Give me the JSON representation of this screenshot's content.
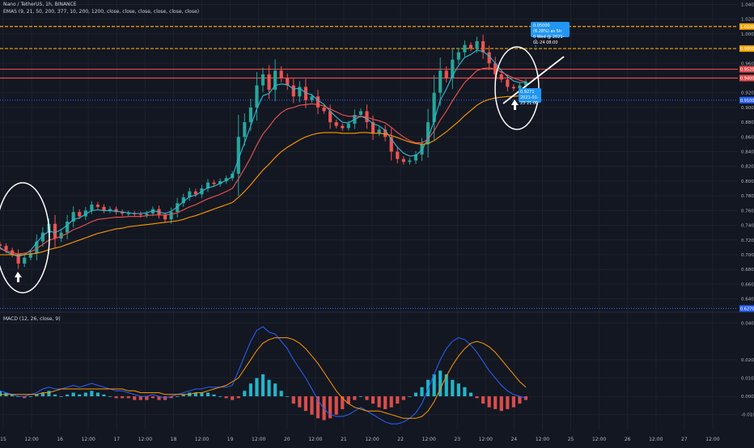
{
  "header": {
    "symbol_line": "Nano / TetherUS, 1h, BINANCE",
    "ema_line": "EMAS (9, 21, 50, 200, 377, 10, 200, 1200, close, close, close, close, close, close)",
    "macd_line": "MACD (12, 26, close, 9)"
  },
  "annotations": {
    "target_label_line1": "0.05000 (6.28%) as 5h",
    "target_label_line2": "0 Wed @ 2021-01-24 08:00",
    "current_label_line1": "0.9271",
    "current_label_line2": "2021-01-23 21:00"
  },
  "colors": {
    "background": "#131722",
    "grid": "#1e222d",
    "candle_up": "#26a69a",
    "candle_down": "#ef5350",
    "ema_fast": "#2ebcd6",
    "ema_mid": "#f05350",
    "ema_slow": "#ff9800",
    "level_orange": "#f7a600",
    "level_red": "#e04a4a",
    "level_blue": "#2962ff",
    "macd_line": "#2962ff",
    "signal_line": "#ff9800",
    "hist_up": "#26c6da",
    "hist_down": "#ef5350"
  },
  "chart_data": [
    {
      "type": "candlestick",
      "title": "Nano / TetherUS, 1h, BINANCE",
      "x_ticks": [
        "15",
        "12:00",
        "16",
        "12:00",
        "17",
        "12:00",
        "18",
        "12:00",
        "19",
        "12:00",
        "20",
        "12:00",
        "21",
        "12:00",
        "22",
        "12:00",
        "23",
        "12:00",
        "24",
        "12:00",
        "25",
        "12:00",
        "26",
        "12:00",
        "27",
        "12:00"
      ],
      "y_ticks": [
        "1.0400",
        "1.0200",
        "1.0000",
        "0.9800",
        "0.9600",
        "0.9400",
        "0.9200",
        "0.9000",
        "0.8800",
        "0.8600",
        "0.8400",
        "0.8200",
        "0.8000",
        "0.7800",
        "0.7600",
        "0.7400",
        "0.7200",
        "0.7000",
        "0.6800",
        "0.6600",
        "0.6400"
      ],
      "ylim": [
        0.622,
        1.046
      ],
      "grid": true,
      "close_series": [
        0.712,
        0.706,
        0.7,
        0.688,
        0.696,
        0.702,
        0.718,
        0.73,
        0.742,
        0.722,
        0.73,
        0.745,
        0.758,
        0.752,
        0.76,
        0.768,
        0.765,
        0.76,
        0.762,
        0.758,
        0.756,
        0.756,
        0.755,
        0.754,
        0.756,
        0.762,
        0.754,
        0.748,
        0.758,
        0.77,
        0.778,
        0.786,
        0.782,
        0.79,
        0.798,
        0.796,
        0.8,
        0.804,
        0.81,
        0.86,
        0.88,
        0.9,
        0.93,
        0.945,
        0.924,
        0.95,
        0.94,
        0.93,
        0.915,
        0.928,
        0.91,
        0.915,
        0.9,
        0.895,
        0.88,
        0.875,
        0.872,
        0.878,
        0.89,
        0.895,
        0.88,
        0.865,
        0.87,
        0.86,
        0.84,
        0.83,
        0.826,
        0.828,
        0.836,
        0.85,
        0.88,
        0.92,
        0.95,
        0.94,
        0.965,
        0.975,
        0.985,
        0.98,
        0.99,
        0.975,
        0.96,
        0.945,
        0.938,
        0.928,
        0.926,
        0.93,
        0.935
      ],
      "series": [
        {
          "name": "EMA 9",
          "values": [
            0.71,
            0.704,
            0.7,
            0.698,
            0.7,
            0.706,
            0.716,
            0.726,
            0.732,
            0.73,
            0.734,
            0.74,
            0.748,
            0.75,
            0.755,
            0.76,
            0.761,
            0.76,
            0.76,
            0.759,
            0.758,
            0.757,
            0.756,
            0.756,
            0.757,
            0.76,
            0.758,
            0.756,
            0.759,
            0.765,
            0.772,
            0.779,
            0.781,
            0.786,
            0.791,
            0.793,
            0.797,
            0.801,
            0.806,
            0.83,
            0.852,
            0.875,
            0.898,
            0.916,
            0.919,
            0.93,
            0.932,
            0.931,
            0.925,
            0.926,
            0.92,
            0.917,
            0.91,
            0.904,
            0.895,
            0.887,
            0.88,
            0.879,
            0.884,
            0.888,
            0.885,
            0.878,
            0.875,
            0.869,
            0.857,
            0.846,
            0.838,
            0.834,
            0.835,
            0.842,
            0.858,
            0.882,
            0.91,
            0.925,
            0.943,
            0.957,
            0.968,
            0.972,
            0.978,
            0.976,
            0.97,
            0.96,
            0.95,
            0.942,
            0.936,
            0.934,
            0.934
          ]
        },
        {
          "name": "EMA 21",
          "values": [
            0.708,
            0.705,
            0.703,
            0.701,
            0.702,
            0.704,
            0.708,
            0.714,
            0.72,
            0.722,
            0.725,
            0.729,
            0.734,
            0.737,
            0.741,
            0.745,
            0.748,
            0.749,
            0.75,
            0.751,
            0.751,
            0.752,
            0.752,
            0.752,
            0.753,
            0.754,
            0.754,
            0.754,
            0.755,
            0.757,
            0.761,
            0.765,
            0.768,
            0.772,
            0.776,
            0.779,
            0.782,
            0.786,
            0.79,
            0.803,
            0.817,
            0.832,
            0.849,
            0.864,
            0.874,
            0.885,
            0.893,
            0.898,
            0.9,
            0.903,
            0.904,
            0.905,
            0.904,
            0.902,
            0.898,
            0.894,
            0.89,
            0.888,
            0.888,
            0.888,
            0.887,
            0.884,
            0.882,
            0.879,
            0.873,
            0.866,
            0.86,
            0.855,
            0.852,
            0.852,
            0.857,
            0.868,
            0.883,
            0.895,
            0.909,
            0.922,
            0.934,
            0.942,
            0.95,
            0.953,
            0.954,
            0.952,
            0.948,
            0.944,
            0.94,
            0.937,
            0.935
          ]
        },
        {
          "name": "EMA 50",
          "values": [
            0.7,
            0.7,
            0.7,
            0.7,
            0.7,
            0.701,
            0.702,
            0.704,
            0.707,
            0.709,
            0.711,
            0.714,
            0.717,
            0.72,
            0.723,
            0.726,
            0.729,
            0.731,
            0.733,
            0.735,
            0.736,
            0.738,
            0.739,
            0.74,
            0.741,
            0.742,
            0.743,
            0.744,
            0.745,
            0.746,
            0.748,
            0.751,
            0.753,
            0.756,
            0.759,
            0.762,
            0.765,
            0.768,
            0.771,
            0.778,
            0.786,
            0.795,
            0.805,
            0.815,
            0.823,
            0.832,
            0.84,
            0.846,
            0.851,
            0.856,
            0.86,
            0.863,
            0.865,
            0.866,
            0.866,
            0.866,
            0.865,
            0.865,
            0.865,
            0.866,
            0.866,
            0.865,
            0.865,
            0.864,
            0.862,
            0.859,
            0.856,
            0.853,
            0.851,
            0.85,
            0.851,
            0.855,
            0.861,
            0.867,
            0.874,
            0.881,
            0.889,
            0.896,
            0.903,
            0.908,
            0.911,
            0.913,
            0.914,
            0.915,
            0.915,
            0.916,
            0.917
          ]
        }
      ],
      "horizontal_levels": [
        {
          "price": 1.01,
          "label": "1.0100",
          "style": "dashed",
          "color": "#f7a600"
        },
        {
          "price": 0.98,
          "label": "0.9800",
          "style": "dashed",
          "color": "#f7a600"
        },
        {
          "price": 0.952,
          "label": "0.9520",
          "style": "solid",
          "color": "#e04a4a"
        },
        {
          "price": 0.94,
          "label": "0.9400",
          "style": "solid",
          "color": "#e04a4a"
        },
        {
          "price": 0.91,
          "label": "0.9100",
          "style": "dotted",
          "color": "#2962ff"
        },
        {
          "price": 0.627,
          "label": "0.6270",
          "style": "dotted",
          "color": "#2962ff"
        }
      ]
    },
    {
      "type": "bar",
      "title": "MACD (12, 26, close, 9)",
      "y_ticks": [
        "0.0400",
        "0.0200",
        "0.0100",
        "0.0000",
        "-0.0100"
      ],
      "ylim": [
        -0.0185,
        0.0455
      ],
      "histogram": [
        0.003,
        0.002,
        0.001,
        0.0,
        -0.001,
        0.0,
        0.001,
        0.002,
        0.003,
        0.001,
        0.0,
        0.001,
        0.002,
        0.001,
        0.002,
        0.003,
        0.002,
        0.001,
        0.0,
        -0.001,
        -0.001,
        -0.001,
        -0.002,
        -0.002,
        -0.002,
        -0.001,
        -0.002,
        -0.002,
        -0.001,
        0.0,
        0.001,
        0.002,
        0.002,
        0.002,
        0.002,
        0.001,
        0.0,
        -0.001,
        -0.002,
        -0.001,
        0.003,
        0.007,
        0.01,
        0.012,
        0.009,
        0.007,
        0.003,
        0.0,
        -0.004,
        -0.006,
        -0.008,
        -0.01,
        -0.012,
        -0.013,
        -0.012,
        -0.01,
        -0.007,
        -0.004,
        -0.002,
        0.0,
        -0.002,
        -0.004,
        -0.006,
        -0.007,
        -0.006,
        -0.004,
        -0.002,
        0.0,
        0.002,
        0.005,
        0.009,
        0.012,
        0.014,
        0.012,
        0.009,
        0.007,
        0.005,
        0.002,
        -0.001,
        -0.004,
        -0.006,
        -0.007,
        -0.008,
        -0.007,
        -0.006,
        -0.004,
        -0.002
      ],
      "series": [
        {
          "name": "MACD",
          "values": [
            0.003,
            0.002,
            0.001,
            0.0,
            0.0,
            0.001,
            0.002,
            0.004,
            0.005,
            0.004,
            0.004,
            0.005,
            0.006,
            0.005,
            0.006,
            0.007,
            0.006,
            0.005,
            0.004,
            0.003,
            0.003,
            0.002,
            0.001,
            0.0,
            0.0,
            0.001,
            0.0,
            -0.001,
            0.0,
            0.001,
            0.002,
            0.003,
            0.004,
            0.004,
            0.005,
            0.005,
            0.005,
            0.005,
            0.006,
            0.014,
            0.022,
            0.03,
            0.036,
            0.038,
            0.035,
            0.034,
            0.03,
            0.026,
            0.02,
            0.015,
            0.01,
            0.004,
            -0.002,
            -0.007,
            -0.01,
            -0.011,
            -0.011,
            -0.01,
            -0.008,
            -0.006,
            -0.008,
            -0.01,
            -0.012,
            -0.014,
            -0.015,
            -0.015,
            -0.014,
            -0.012,
            -0.009,
            -0.004,
            0.004,
            0.012,
            0.02,
            0.026,
            0.03,
            0.032,
            0.031,
            0.028,
            0.024,
            0.019,
            0.014,
            0.01,
            0.006,
            0.003,
            0.001,
            0.0,
            -0.001
          ]
        },
        {
          "name": "Signal",
          "values": [
            0.001,
            0.001,
            0.001,
            0.001,
            0.001,
            0.001,
            0.001,
            0.002,
            0.002,
            0.003,
            0.004,
            0.004,
            0.004,
            0.004,
            0.004,
            0.004,
            0.004,
            0.004,
            0.004,
            0.004,
            0.004,
            0.003,
            0.003,
            0.002,
            0.002,
            0.002,
            0.002,
            0.001,
            0.001,
            0.001,
            0.001,
            0.001,
            0.002,
            0.002,
            0.003,
            0.004,
            0.005,
            0.006,
            0.008,
            0.01,
            0.015,
            0.02,
            0.025,
            0.029,
            0.031,
            0.032,
            0.032,
            0.032,
            0.031,
            0.029,
            0.026,
            0.022,
            0.018,
            0.013,
            0.008,
            0.003,
            -0.001,
            -0.004,
            -0.006,
            -0.007,
            -0.008,
            -0.008,
            -0.008,
            -0.009,
            -0.01,
            -0.011,
            -0.012,
            -0.012,
            -0.012,
            -0.011,
            -0.008,
            -0.003,
            0.004,
            0.011,
            0.017,
            0.022,
            0.026,
            0.029,
            0.03,
            0.029,
            0.027,
            0.024,
            0.02,
            0.016,
            0.012,
            0.008,
            0.005
          ]
        }
      ]
    }
  ]
}
